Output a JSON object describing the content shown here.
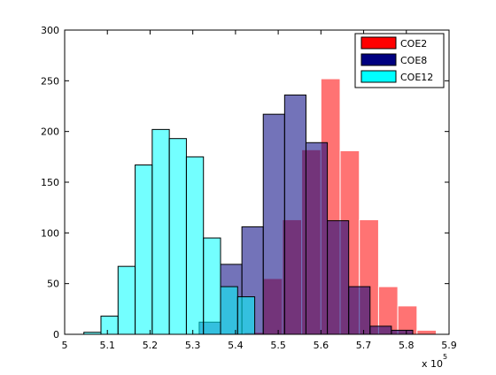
{
  "chart_data": {
    "type": "bar",
    "subtype": "overlaid-histogram",
    "title": "",
    "xlabel": "",
    "ylabel": "",
    "xlim": [
      500000,
      590000
    ],
    "ylim": [
      0,
      300
    ],
    "grid": false,
    "legend_position": "top-right",
    "x_exponent_label": "x 10",
    "x_exponent_power": "5",
    "x_ticks": [
      {
        "value": 500000,
        "label": "5"
      },
      {
        "value": 510000,
        "label": "5.1"
      },
      {
        "value": 520000,
        "label": "5.2"
      },
      {
        "value": 530000,
        "label": "5.3"
      },
      {
        "value": 540000,
        "label": "5.4"
      },
      {
        "value": 550000,
        "label": "5.5"
      },
      {
        "value": 560000,
        "label": "5.6"
      },
      {
        "value": 570000,
        "label": "5.7"
      },
      {
        "value": 580000,
        "label": "5.8"
      },
      {
        "value": 590000,
        "label": "5.9"
      }
    ],
    "y_ticks": [
      {
        "value": 0,
        "label": "0"
      },
      {
        "value": 50,
        "label": "50"
      },
      {
        "value": 100,
        "label": "100"
      },
      {
        "value": 150,
        "label": "150"
      },
      {
        "value": 200,
        "label": "200"
      },
      {
        "value": 250,
        "label": "250"
      },
      {
        "value": 300,
        "label": "300"
      }
    ],
    "series": [
      {
        "name": "COE2",
        "color": "#ff0000",
        "face_alpha": 0.55,
        "edge_color": "#ffffff",
        "legend_color": "#ff0000",
        "bins": [
          {
            "x0": 542000,
            "x1": 546500,
            "count": 2
          },
          {
            "x0": 546500,
            "x1": 551000,
            "count": 55
          },
          {
            "x0": 551000,
            "x1": 555500,
            "count": 113
          },
          {
            "x0": 555500,
            "x1": 560000,
            "count": 182
          },
          {
            "x0": 560000,
            "x1": 564500,
            "count": 252
          },
          {
            "x0": 564500,
            "x1": 569000,
            "count": 181
          },
          {
            "x0": 569000,
            "x1": 573500,
            "count": 113
          },
          {
            "x0": 573500,
            "x1": 578000,
            "count": 47
          },
          {
            "x0": 578000,
            "x1": 582500,
            "count": 28
          },
          {
            "x0": 582500,
            "x1": 587000,
            "count": 4
          }
        ]
      },
      {
        "name": "COE8",
        "color": "#000080",
        "face_alpha": 0.55,
        "edge_color": "#000000",
        "legend_color": "#000080",
        "bins": [
          {
            "x0": 531500,
            "x1": 536500,
            "count": 12
          },
          {
            "x0": 536500,
            "x1": 541500,
            "count": 69
          },
          {
            "x0": 541500,
            "x1": 546500,
            "count": 106
          },
          {
            "x0": 546500,
            "x1": 551500,
            "count": 217
          },
          {
            "x0": 551500,
            "x1": 556500,
            "count": 236
          },
          {
            "x0": 556500,
            "x1": 561500,
            "count": 189
          },
          {
            "x0": 561500,
            "x1": 566500,
            "count": 112
          },
          {
            "x0": 566500,
            "x1": 571500,
            "count": 47
          },
          {
            "x0": 571500,
            "x1": 576500,
            "count": 8
          },
          {
            "x0": 576500,
            "x1": 581500,
            "count": 4
          }
        ]
      },
      {
        "name": "COE12",
        "color": "#00ffff",
        "face_alpha": 0.55,
        "edge_color": "#000000",
        "legend_color": "#00ffff",
        "bins": [
          {
            "x0": 504500,
            "x1": 508500,
            "count": 2
          },
          {
            "x0": 508500,
            "x1": 512500,
            "count": 18
          },
          {
            "x0": 512500,
            "x1": 516500,
            "count": 67
          },
          {
            "x0": 516500,
            "x1": 520500,
            "count": 167
          },
          {
            "x0": 520500,
            "x1": 524500,
            "count": 202
          },
          {
            "x0": 524500,
            "x1": 528500,
            "count": 193
          },
          {
            "x0": 528500,
            "x1": 532500,
            "count": 175
          },
          {
            "x0": 532500,
            "x1": 536500,
            "count": 95
          },
          {
            "x0": 536500,
            "x1": 540500,
            "count": 47
          },
          {
            "x0": 540500,
            "x1": 544500,
            "count": 37
          }
        ]
      }
    ]
  }
}
